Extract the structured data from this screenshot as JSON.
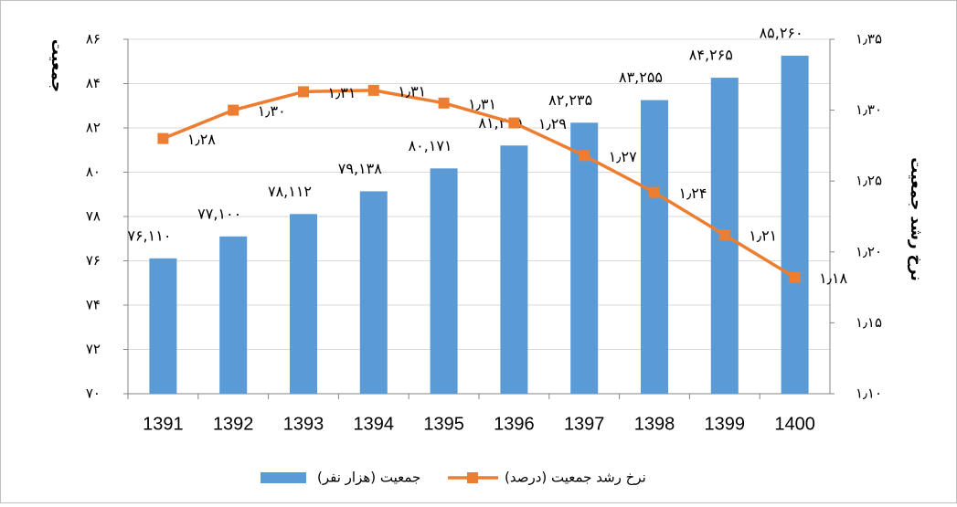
{
  "chart_data": {
    "type": "bar",
    "categories": [
      "1391",
      "1392",
      "1393",
      "1394",
      "1395",
      "1396",
      "1397",
      "1398",
      "1399",
      "1400"
    ],
    "series": [
      {
        "name": "جمعیت (هزار نفر)",
        "type": "bar",
        "color": "#5b9bd5",
        "values": [
          76.11,
          77.1,
          78.112,
          79.138,
          80.171,
          81.205,
          82.235,
          83.255,
          84.265,
          85.26
        ],
        "value_labels": [
          "۷۶,۱۱۰",
          "۷۷,۱۰۰",
          "۷۸,۱۱۲",
          "۷۹,۱۳۸",
          "۸۰,۱۷۱",
          "۸۱,۲۰۵",
          "۸۲,۲۳۵",
          "۸۳,۲۵۵",
          "۸۴,۲۶۵",
          "۸۵,۲۶۰"
        ]
      },
      {
        "name": "نرخ رشد جمعیت (درصد)",
        "type": "line",
        "axis": "y2",
        "color": "#ed7d31",
        "values": [
          1.28,
          1.3,
          1.313,
          1.314,
          1.305,
          1.291,
          1.268,
          1.242,
          1.212,
          1.182
        ],
        "value_labels": [
          "۱٫۲۸",
          "۱٫۳۰",
          "۱٫۳۱",
          "۱٫۳۱",
          "۱٫۳۱",
          "۱٫۲۹",
          "۱٫۲۷",
          "۱٫۲۴",
          "۱٫۲۱",
          "۱٫۱۸"
        ]
      }
    ],
    "ylabel": "جمعیت",
    "y2label": "نرخ رشد جمعیت",
    "ylim": [
      70,
      86
    ],
    "yticks": [
      {
        "value": 70,
        "label": "۷۰"
      },
      {
        "value": 72,
        "label": "۷۲"
      },
      {
        "value": 74,
        "label": "۷۴"
      },
      {
        "value": 76,
        "label": "۷۶"
      },
      {
        "value": 78,
        "label": "۷۸"
      },
      {
        "value": 80,
        "label": "۸۰"
      },
      {
        "value": 82,
        "label": "۸۲"
      },
      {
        "value": 84,
        "label": "۸۴"
      },
      {
        "value": 86,
        "label": "۸۶"
      }
    ],
    "y2lim": [
      1.1,
      1.35
    ],
    "y2ticks": [
      {
        "value": 1.1,
        "label": "۱٫۱۰"
      },
      {
        "value": 1.15,
        "label": "۱٫۱۵"
      },
      {
        "value": 1.2,
        "label": "۱٫۲۰"
      },
      {
        "value": 1.25,
        "label": "۱٫۲۵"
      },
      {
        "value": 1.3,
        "label": "۱٫۳۰"
      },
      {
        "value": 1.35,
        "label": "۱٫۳۵"
      }
    ],
    "grid": true,
    "legend": "bottom"
  }
}
